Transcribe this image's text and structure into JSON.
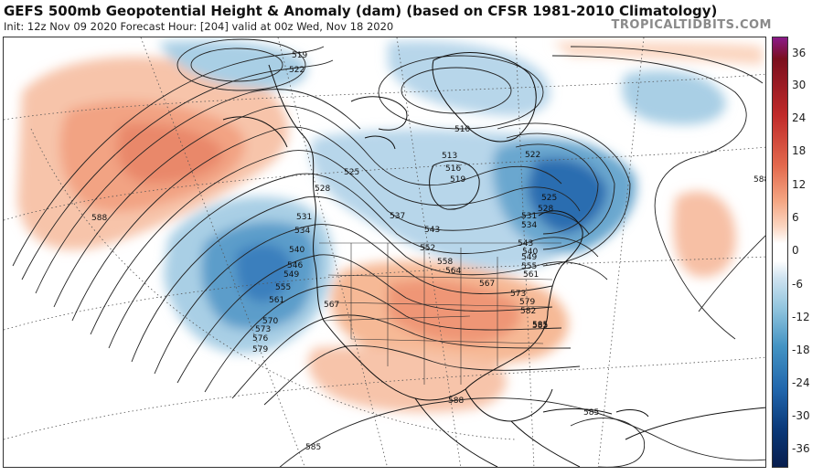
{
  "header": {
    "title": "GEFS 500mb Geopotential Height & Anomaly (dam) (based on CFSR 1981-2010 Climatology)",
    "subtitle": "Init: 12z Nov 09 2020   Forecast Hour: [204]   valid at 00z Wed, Nov 18 2020",
    "brand": "TROPICALTIDBITS.COM"
  },
  "colorbar": {
    "ticks": [
      "36",
      "30",
      "24",
      "18",
      "12",
      "6",
      "0",
      "-6",
      "-12",
      "-18",
      "-24",
      "-30",
      "-36"
    ],
    "colors": {
      "top_purple": "#8b1a89",
      "dark_red": "#7a0f1e",
      "red": "#c02a2a",
      "orange_red": "#e36a4e",
      "salmon": "#f4a582",
      "light_salmon": "#fbd5c0",
      "white": "#ffffff",
      "light_blue": "#cfe3f0",
      "sky_blue": "#92c5de",
      "mid_blue": "#4393c3",
      "blue": "#2166ac",
      "dark_blue": "#0b3a7a",
      "navy": "#081d4d"
    }
  },
  "map": {
    "contour_labels": [
      "519",
      "522",
      "525",
      "528",
      "531",
      "534",
      "537",
      "540",
      "543",
      "546",
      "549",
      "552",
      "555",
      "558",
      "561",
      "564",
      "567",
      "570",
      "573",
      "576",
      "579",
      "582",
      "585",
      "588",
      "510",
      "513",
      "516",
      "519",
      "522",
      "525",
      "528",
      "531",
      "534",
      "540",
      "543",
      "549",
      "555",
      "561",
      "567",
      "573",
      "579",
      "585",
      "588",
      "585",
      "585",
      "588"
    ]
  }
}
